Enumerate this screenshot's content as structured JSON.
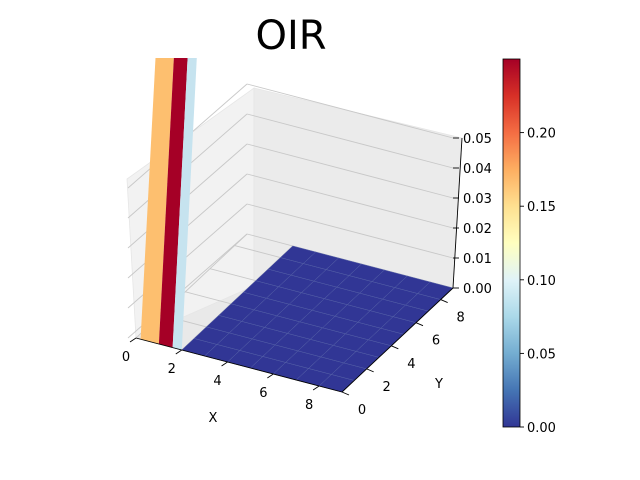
{
  "chart_data": {
    "type": "surface3d",
    "title": "OIR",
    "xlabel": "X",
    "ylabel": "Y",
    "zlabel": "",
    "xlim": [
      0,
      9
    ],
    "ylim": [
      0,
      9
    ],
    "zlim": [
      0,
      0.05
    ],
    "x_ticks": [
      "0",
      "2",
      "4",
      "6",
      "8"
    ],
    "y_ticks": [
      "0",
      "2",
      "4",
      "6",
      "8"
    ],
    "z_ticks": [
      "0.00",
      "0.01",
      "0.02",
      "0.03",
      "0.04",
      "0.05"
    ],
    "colorbar": {
      "colormap": "RdYlBu_r",
      "range": [
        0,
        0.25
      ],
      "ticks": [
        "0.00",
        "0.05",
        "0.10",
        "0.15",
        "0.20"
      ]
    },
    "surface": {
      "x": [
        0,
        1,
        2,
        3,
        4,
        5,
        6,
        7,
        8,
        9
      ],
      "y": [
        0,
        1,
        2,
        3,
        4,
        5,
        6,
        7,
        8,
        9
      ],
      "description_values": "Z is 0 across the grid except near the x=0..2 edge where values rise far above the axis top (clipped), colored ~0.15, ~0.25 and ~0.08 along successive strips",
      "edge_strip_values": [
        0.15,
        0.25,
        0.08
      ],
      "base_value": 0.0
    },
    "grid": true,
    "colors": {
      "low": "#313695",
      "high": "#a50026",
      "strip_orange": "#fdbf6f",
      "strip_red": "#a50026",
      "strip_lightblue": "#c6e3ef"
    }
  }
}
